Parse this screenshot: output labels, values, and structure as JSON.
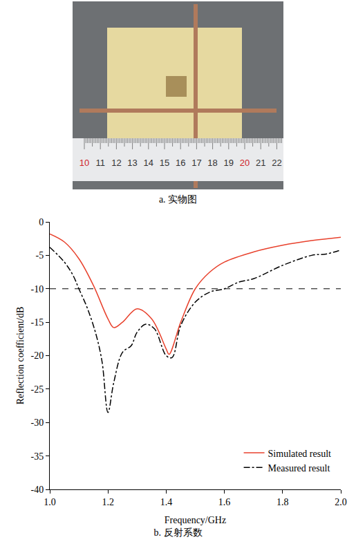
{
  "photo": {
    "caption": "a. 实物图",
    "ruler_labels": [
      10,
      11,
      12,
      13,
      14,
      15,
      16,
      17,
      18,
      19,
      20,
      21,
      22
    ]
  },
  "chart_data": {
    "type": "line",
    "caption": "b. 反射系数",
    "x_label": "Frequency/GHz",
    "y_label": "Reflection coefficient/dB",
    "xlim": [
      1.0,
      2.0
    ],
    "xticks": [
      {
        "value": 1.0,
        "label": "1.0"
      },
      {
        "value": 1.2,
        "label": "1.2"
      },
      {
        "value": 1.4,
        "label": "1.4"
      },
      {
        "value": 1.6,
        "label": "1.6"
      },
      {
        "value": 1.8,
        "label": "1.8"
      },
      {
        "value": 2.0,
        "label": "2.0"
      }
    ],
    "ylim": [
      -40,
      0
    ],
    "yticks": [
      -40,
      -35,
      -30,
      -25,
      -20,
      -15,
      -10,
      -5,
      0
    ],
    "grid": false,
    "legend": "lower right",
    "threshold": {
      "value": -10,
      "color": "#000000",
      "line_style": "dash"
    },
    "series": [
      {
        "name": "Simulated result",
        "color": "#e8412c",
        "line_style": "solid",
        "x": [
          1.0,
          1.05,
          1.1,
          1.15,
          1.2,
          1.22,
          1.25,
          1.3,
          1.35,
          1.4,
          1.41,
          1.45,
          1.5,
          1.55,
          1.6,
          1.7,
          1.8,
          1.9,
          2.0
        ],
        "values": [
          -1.8,
          -3,
          -5.5,
          -9.5,
          -14.5,
          -15.8,
          -15,
          -13,
          -14.5,
          -19,
          -19.8,
          -15,
          -10,
          -7.5,
          -6,
          -4.5,
          -3.5,
          -2.8,
          -2.3
        ]
      },
      {
        "name": "Measured result",
        "color": "#000000",
        "line_style": "dashdot",
        "x": [
          1.0,
          1.05,
          1.08,
          1.1,
          1.13,
          1.16,
          1.18,
          1.2,
          1.22,
          1.25,
          1.28,
          1.3,
          1.33,
          1.36,
          1.4,
          1.42,
          1.45,
          1.5,
          1.55,
          1.6,
          1.65,
          1.7,
          1.8,
          1.9,
          1.95,
          2.0
        ],
        "values": [
          -3.8,
          -6,
          -8,
          -10,
          -13,
          -17,
          -21,
          -28.5,
          -24,
          -19.5,
          -18.5,
          -16.5,
          -15.3,
          -16,
          -20,
          -20.3,
          -15.5,
          -12,
          -10.5,
          -10,
          -9,
          -8.5,
          -6.5,
          -5,
          -4.8,
          -4.2
        ]
      }
    ]
  }
}
